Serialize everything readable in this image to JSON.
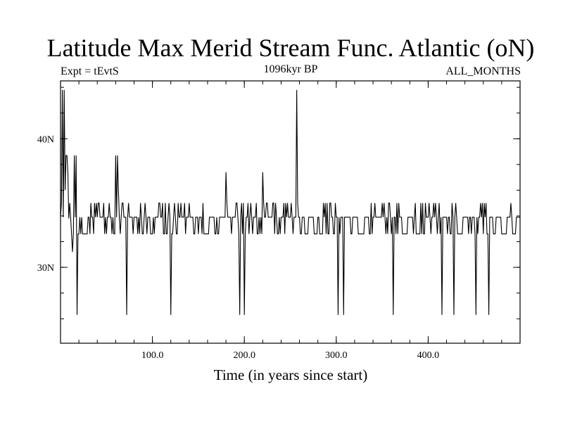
{
  "chart_data": {
    "type": "line",
    "title": "Latitude Max Merid Stream Func. Atlantic (oN)",
    "subtitle_left": "Expt = tEvtS",
    "subtitle_center": "1096kyr BP",
    "subtitle_right": "ALL_MONTHS",
    "xlabel": "Time (in years since start)",
    "ylabel": "",
    "xlim": [
      0,
      500
    ],
    "ylim": [
      24.1,
      44.5
    ],
    "x_ticks": [
      {
        "value": 100,
        "label": "100.0"
      },
      {
        "value": 200,
        "label": "200.0"
      },
      {
        "value": 300,
        "label": "300.0"
      },
      {
        "value": 400,
        "label": "400.0"
      }
    ],
    "y_ticks": [
      {
        "value": 30,
        "label": "30N"
      },
      {
        "value": 40,
        "label": "40N"
      }
    ],
    "x_minor_step": 20,
    "y_minor_step": 2,
    "baseline": 32.6,
    "series": [
      {
        "name": "latitude_max",
        "segments": [
          {
            "x0": 0,
            "x1": 1,
            "y": 33.9
          },
          {
            "x0": 1,
            "x1": 6,
            "values": [
              35.0,
              43.8,
              33.9,
              43.8,
              36.0
            ]
          },
          {
            "x0": 6,
            "x1": 11,
            "values": [
              38.7,
              34.2,
              37.4,
              33.8,
              35.0
            ]
          },
          {
            "x0": 11,
            "x1": 17,
            "values": [
              33.9,
              32.6,
              31.2,
              32.6,
              38.7,
              33.9
            ]
          },
          {
            "x0": 17,
            "x1": 22,
            "values": [
              26.3,
              31.3,
              32.6,
              32.6,
              33.9
            ]
          },
          {
            "x0": 22,
            "x1": 62,
            "pattern": "noisy_low"
          },
          {
            "x0": 62,
            "x1": 64,
            "values": [
              38.7,
              36.0
            ]
          },
          {
            "x0": 64,
            "x1": 120,
            "pattern": "noisy_low"
          },
          {
            "x0": 180,
            "x1": 181,
            "values": [
              37.4
            ]
          },
          {
            "x0": 220,
            "x1": 221,
            "values": [
              37.4
            ]
          },
          {
            "x0": 257,
            "x1": 258,
            "values": [
              43.8
            ]
          }
        ],
        "spikes_down": [
          {
            "x": 18,
            "y": 26.3
          },
          {
            "x": 72,
            "y": 26.3
          },
          {
            "x": 120,
            "y": 26.3
          },
          {
            "x": 195,
            "y": 26.3
          },
          {
            "x": 200,
            "y": 26.3
          },
          {
            "x": 302,
            "y": 26.3
          },
          {
            "x": 308,
            "y": 26.3
          },
          {
            "x": 362,
            "y": 26.3
          },
          {
            "x": 415,
            "y": 26.3
          },
          {
            "x": 428,
            "y": 26.3
          },
          {
            "x": 452,
            "y": 26.3
          },
          {
            "x": 466,
            "y": 26.3
          }
        ],
        "spikes_up": [
          {
            "x": 4,
            "y": 43.8
          },
          {
            "x": 7,
            "y": 38.7
          },
          {
            "x": 17,
            "y": 38.7
          },
          {
            "x": 60,
            "y": 38.7
          },
          {
            "x": 180,
            "y": 37.4
          },
          {
            "x": 220,
            "y": 37.4
          },
          {
            "x": 257,
            "y": 43.8
          }
        ]
      }
    ]
  }
}
